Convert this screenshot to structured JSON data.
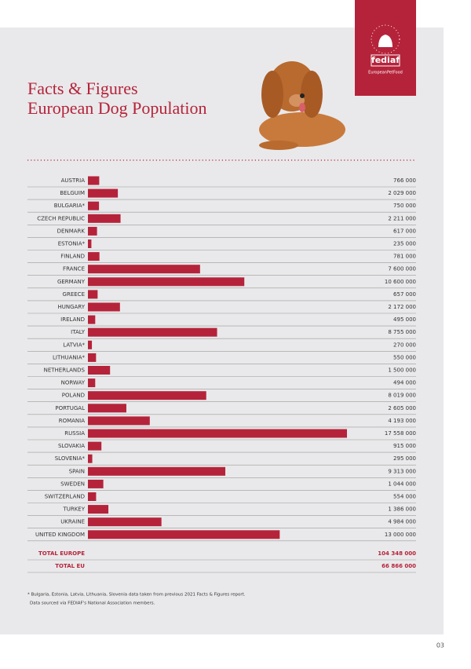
{
  "logo": {
    "name": "fediaf",
    "tagline": "EuropeanPetFood"
  },
  "page_number": "03",
  "chart_data": {
    "type": "hbar",
    "title": [
      "Facts & Figures",
      "European Dog Population"
    ],
    "color": "#b5233a",
    "categories": [
      "AUSTRIA",
      "BELGUIM",
      "BULGARIA*",
      "CZECH REPUBLIC",
      "DENMARK",
      "ESTONIA*",
      "FINLAND",
      "FRANCE",
      "GERMANY",
      "GREECE",
      "HUNGARY",
      "IRELAND",
      "ITALY",
      "LATVIA*",
      "LITHUANIA*",
      "NETHERLANDS",
      "NORWAY",
      "POLAND",
      "PORTUGAL",
      "ROMANIA",
      "RUSSIA",
      "SLOVAKIA",
      "SLOVENIA*",
      "SPAIN",
      "SWEDEN",
      "SWITZERLAND",
      "TURKEY",
      "UKRAINE",
      "UNITED KINGDOM"
    ],
    "values": [
      766000,
      2029000,
      750000,
      2211000,
      617000,
      235000,
      781000,
      7600000,
      10600000,
      657000,
      2172000,
      495000,
      8755000,
      270000,
      550000,
      1500000,
      494000,
      8019000,
      2605000,
      4193000,
      17558000,
      915000,
      295000,
      9313000,
      1044000,
      554000,
      1386000,
      4984000,
      13000000
    ],
    "value_labels": [
      "766 000",
      "2 029 000",
      "750 000",
      "2 211 000",
      "617 000",
      "235 000",
      "781 000",
      "7 600 000",
      "10 600 000",
      "657 000",
      "2 172 000",
      "495 000",
      "8 755 000",
      "270 000",
      "550 000",
      "1 500 000",
      "494 000",
      "8 019 000",
      "2 605 000",
      "4 193 000",
      "17 558 000",
      "915 000",
      "295 000",
      "9 313 000",
      "1 044 000",
      "554 000",
      "1 386 000",
      "4 984 000",
      "13 000 000"
    ],
    "totals": [
      {
        "label": "TOTAL EUROPE",
        "value": "104 348 000"
      },
      {
        "label": "TOTAL EU",
        "value": "66 866 000"
      }
    ],
    "notes": [
      "* Bulgaria, Estonia, Latvia, Lithuania, Slovenia data taken from previous 2021 Facts & Figures report.",
      "Data sourced via FEDIAF's National Association members."
    ]
  }
}
